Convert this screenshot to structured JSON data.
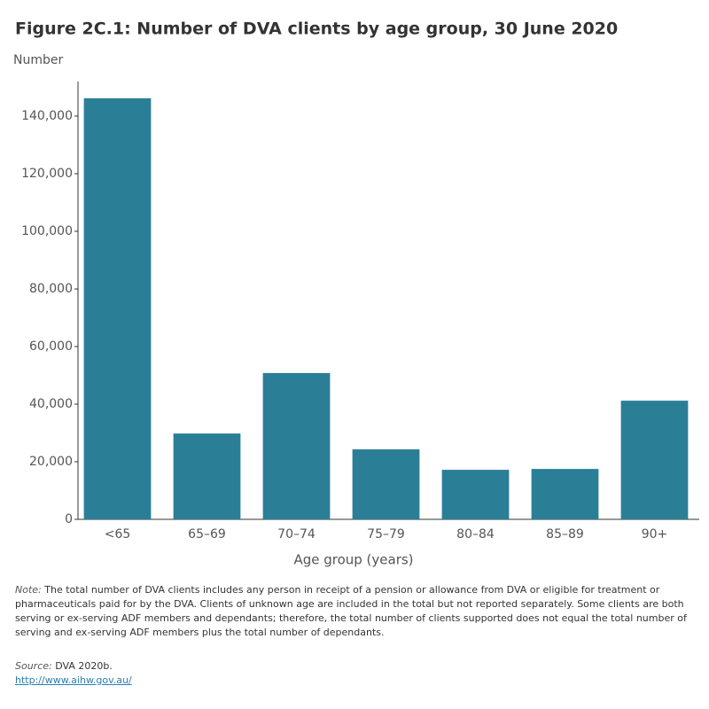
{
  "chart_data": {
    "type": "bar",
    "title": "Figure 2C.1: Number of DVA clients by age group, 30 June 2020",
    "y_label": "Number",
    "x_label": "Age group (years)",
    "categories": [
      "<65",
      "65–69",
      "70–74",
      "75–79",
      "80–84",
      "85–89",
      "90+"
    ],
    "values": [
      146200,
      29800,
      50800,
      24300,
      17200,
      17500,
      41200
    ],
    "color": "#2a7f97",
    "ylim": [
      0,
      152000
    ],
    "yticks": [
      0,
      {
        "value": 20000,
        "label": "20,000"
      },
      {
        "value": 40000,
        "label": "40,000"
      },
      {
        "value": 60000,
        "label": "60,000"
      },
      {
        "value": 80000,
        "label": "80,000"
      },
      {
        "value": 100000,
        "label": "100,000"
      },
      {
        "value": 120000,
        "label": "120,000"
      },
      {
        "value": 140000,
        "label": "140,000"
      }
    ],
    "grid": false
  },
  "note": {
    "label": "Note:",
    "text": "The total number of DVA clients includes any person in receipt of a pension or allowance from DVA or eligible for treatment or pharmaceuticals paid for by the DVA. Clients of unknown age are included in the total but not reported separately. Some clients are both serving or ex-serving ADF members and dependants; therefore, the total number of clients supported does not equal the total number of serving and ex-serving ADF members plus the total number of dependants."
  },
  "source": {
    "label": "Source:",
    "text": "DVA 2020b."
  },
  "link": "http://www.aihw.gov.au/"
}
